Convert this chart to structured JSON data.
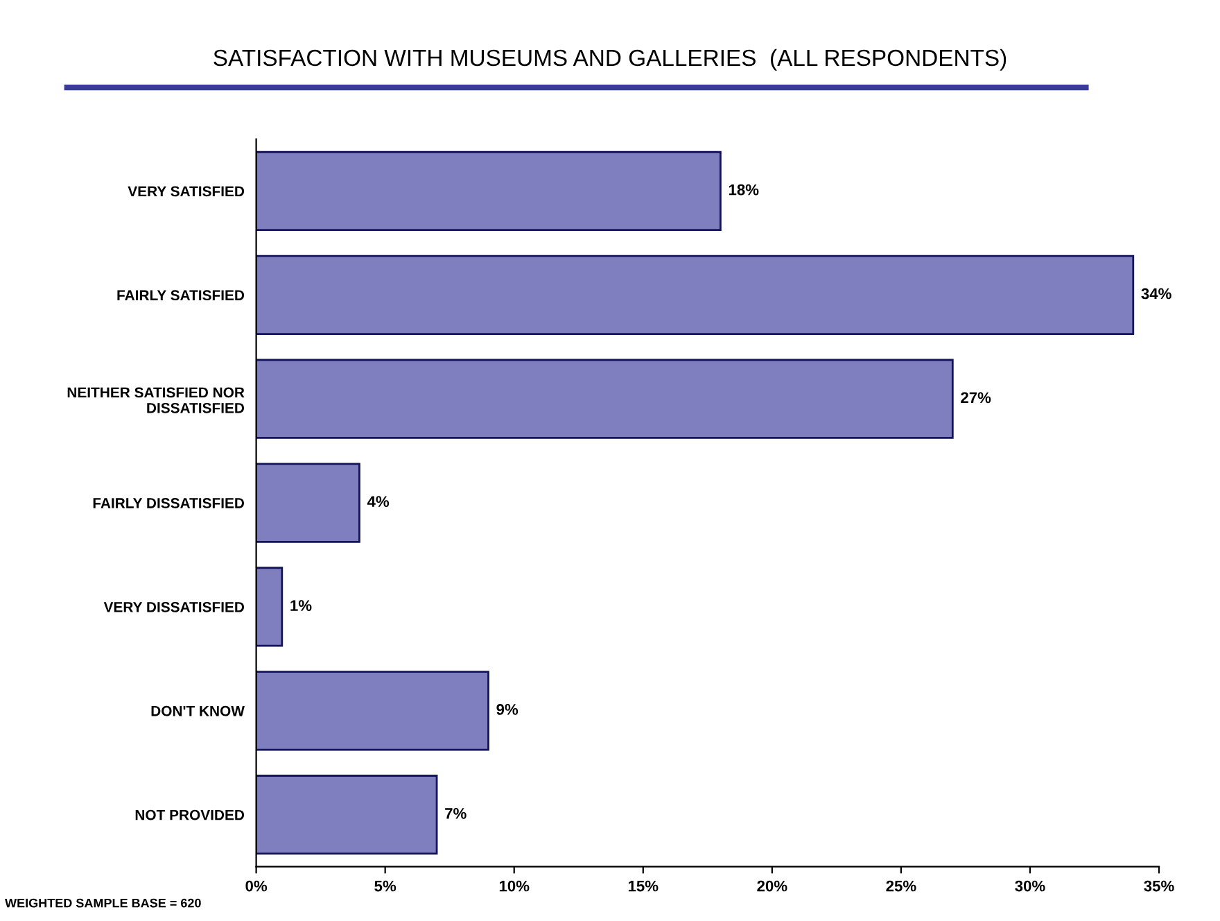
{
  "chart_data": {
    "type": "bar",
    "orientation": "horizontal",
    "title": "SATISFACTION WITH MUSEUMS AND GALLERIES  (ALL RESPONDENTS)",
    "categories": [
      "VERY SATISFIED",
      "FAIRLY SATISFIED",
      "NEITHER SATISFIED NOR\nDISSATISFIED",
      "FAIRLY DISSATISFIED",
      "VERY DISSATISFIED",
      "DON'T KNOW",
      "NOT PROVIDED"
    ],
    "values": [
      18,
      34,
      27,
      4,
      1,
      9,
      7
    ],
    "value_labels": [
      "18%",
      "34%",
      "27%",
      "4%",
      "1%",
      "9%",
      "7%"
    ],
    "color": "#7f7fc0",
    "xlim": [
      0,
      35
    ],
    "xticks": [
      {
        "value": 0,
        "label": "0%"
      },
      {
        "value": 5,
        "label": "5%"
      },
      {
        "value": 10,
        "label": "10%"
      },
      {
        "value": 15,
        "label": "15%"
      },
      {
        "value": 20,
        "label": "20%"
      },
      {
        "value": 25,
        "label": "25%"
      },
      {
        "value": 30,
        "label": "30%"
      },
      {
        "value": 35,
        "label": "35%"
      }
    ],
    "grid": false,
    "legend": false,
    "annotations": [
      "WEIGHTED SAMPLE BASE = 620"
    ]
  }
}
